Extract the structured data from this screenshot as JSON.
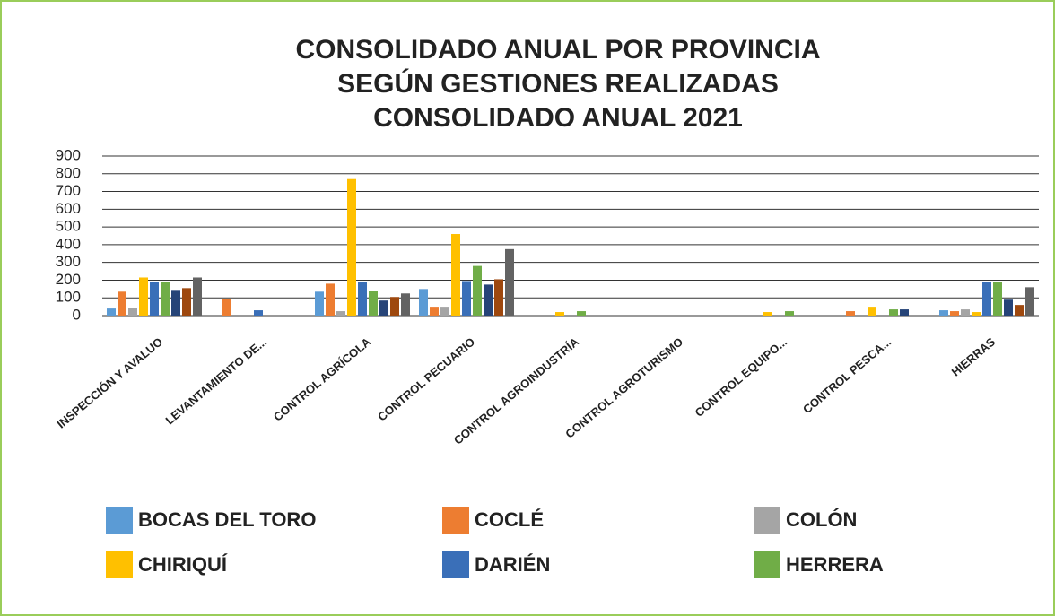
{
  "chart_data": {
    "type": "bar",
    "title": [
      "CONSOLIDADO ANUAL POR PROVINCIA",
      "SEGÚN GESTIONES REALIZADAS",
      "CONSOLIDADO ANUAL 2021"
    ],
    "categories": [
      "INSPECCIÓN Y AVALUO",
      "LEVANTAMIENTO DE...",
      "CONTROL AGRÍCOLA",
      "CONTROL PECUARIO",
      "CONTROL AGROINDUSTRÍA",
      "CONTROL AGROTURISMO",
      "CONTROL EQUIPO...",
      "CONTROL PESCA...",
      "HIERRAS"
    ],
    "series": [
      {
        "name": "BOCAS DEL TORO",
        "color": "#5b9bd5",
        "values": [
          40,
          0,
          135,
          150,
          0,
          0,
          0,
          0,
          30
        ]
      },
      {
        "name": "COCLÉ",
        "color": "#ed7d31",
        "values": [
          135,
          95,
          180,
          50,
          0,
          0,
          0,
          25,
          25
        ]
      },
      {
        "name": "COLÓN",
        "color": "#a5a5a5",
        "values": [
          45,
          0,
          25,
          50,
          0,
          0,
          0,
          0,
          35
        ]
      },
      {
        "name": "CHIRIQUÍ",
        "color": "#ffc000",
        "values": [
          215,
          0,
          770,
          460,
          20,
          0,
          20,
          50,
          20
        ]
      },
      {
        "name": "DARIÉN",
        "color": "#3a6fb8",
        "values": [
          190,
          30,
          190,
          195,
          0,
          0,
          0,
          0,
          190
        ]
      },
      {
        "name": "HERRERA",
        "color": "#70ad47",
        "values": [
          190,
          0,
          140,
          280,
          25,
          0,
          25,
          35,
          190
        ]
      },
      {
        "color": "#264478",
        "values": [
          145,
          0,
          85,
          175,
          0,
          0,
          0,
          35,
          90
        ]
      },
      {
        "color": "#9e480e",
        "values": [
          155,
          0,
          105,
          205,
          0,
          0,
          0,
          0,
          60
        ]
      },
      {
        "color": "#636363",
        "values": [
          215,
          0,
          125,
          375,
          0,
          0,
          0,
          0,
          160
        ]
      }
    ],
    "ylim": [
      0,
      900
    ],
    "yticks": [
      0,
      100,
      200,
      300,
      400,
      500,
      600,
      700,
      800,
      900
    ],
    "grid": true
  }
}
